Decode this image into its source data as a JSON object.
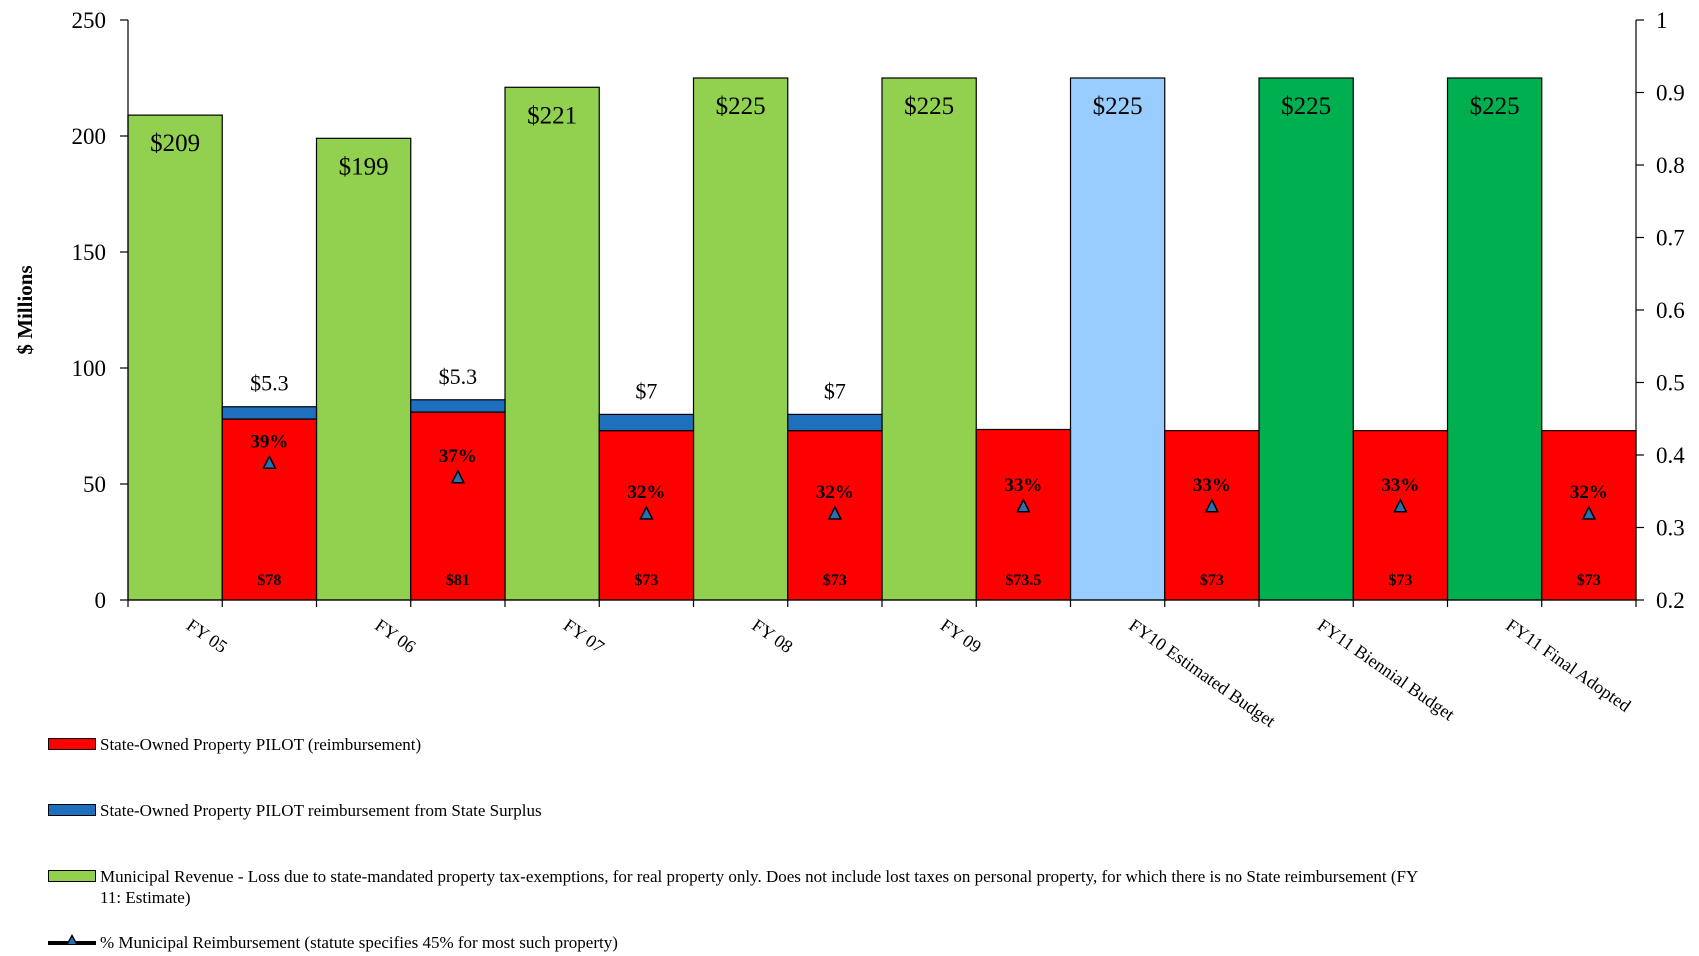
{
  "chart_data": {
    "type": "bar",
    "categories": [
      "FY 05",
      "FY 06",
      "FY 07",
      "FY 08",
      "FY 09",
      "FY10 Estimated Budget",
      "FY11 Biennial Budget",
      "FY11 Final Adopted"
    ],
    "ylabel": "$ Millions",
    "ylim": [
      0,
      250
    ],
    "y_ticks": [
      "0",
      "50",
      "100",
      "150",
      "200",
      "250"
    ],
    "y2lim": [
      0.2,
      1
    ],
    "y2_ticks": [
      "0.2",
      "0.3",
      "0.4",
      "0.5",
      "0.6",
      "0.7",
      "0.8",
      "0.9",
      "1"
    ],
    "grid": false,
    "legend_position": "bottom",
    "series": [
      {
        "name": "State-Owned Property PILOT (reimbursement)",
        "color": "#ff0000",
        "values": [
          78,
          81,
          73,
          73,
          73.5,
          73,
          73,
          73
        ],
        "labels": [
          "$78",
          "$81",
          "$73",
          "$73",
          "$73.5",
          "$73",
          "$73",
          "$73"
        ]
      },
      {
        "name": "State-Owned Property PILOT reimbursement from State Surplus",
        "color": "#1f6fbf",
        "values": [
          5.3,
          5.3,
          7,
          7,
          0,
          0,
          0,
          0
        ],
        "labels": [
          "$5.3",
          "$5.3",
          "$7",
          "$7",
          "",
          "",
          "",
          ""
        ]
      },
      {
        "name": "Municipal Revenue - Loss due to state-mandated property tax-exemptions, for real property only. Does not include lost taxes on personal property, for which there is no State reimbursement (FY 11: Estimate)",
        "color": "#92d050",
        "colors": [
          "#92d050",
          "#92d050",
          "#92d050",
          "#92d050",
          "#92d050",
          "#99ccff",
          "#00b050",
          "#00b050"
        ],
        "values": [
          209,
          199,
          221,
          225,
          225,
          225,
          225,
          225
        ],
        "labels": [
          "$209",
          "$199",
          "$221",
          "$225",
          "$225",
          "$225",
          "$225",
          "$225"
        ]
      },
      {
        "name": "% Municipal Reimbursement (statute specifies 45% for most such property)",
        "type": "line",
        "axis": "secondary",
        "marker": "triangle",
        "marker_color": "#2b6fb3",
        "values": [
          0.39,
          0.37,
          0.32,
          0.32,
          0.33,
          0.33,
          0.33,
          0.32
        ],
        "labels": [
          "39%",
          "37%",
          "32%",
          "32%",
          "33%",
          "33%",
          "33%",
          "32%"
        ]
      }
    ]
  }
}
